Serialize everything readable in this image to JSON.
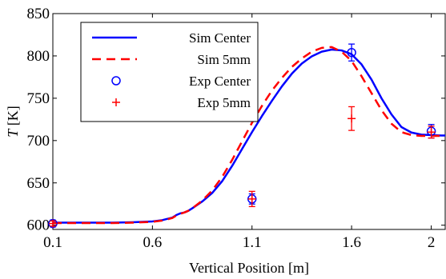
{
  "chart_data": {
    "type": "line",
    "xlabel": "Vertical Position [m]",
    "ylabel_italic": "T",
    "ylabel_unit": " [K]",
    "xlim": [
      0.1,
      2.07
    ],
    "ylim": [
      595,
      850
    ],
    "xticks": [
      0.1,
      0.6,
      1.1,
      1.6,
      2
    ],
    "xtick_labels": [
      "0.1",
      "0.6",
      "1.1",
      "1.6",
      "2"
    ],
    "yticks": [
      600,
      650,
      700,
      750,
      800,
      850
    ],
    "ytick_labels": [
      "600",
      "650",
      "700",
      "750",
      "800",
      "850"
    ],
    "grid": false,
    "legend_position": "top-left",
    "series": [
      {
        "name": "Sim Center",
        "style": "solid-line",
        "color": "#0000FF",
        "x": [
          0.1,
          0.2,
          0.3,
          0.4,
          0.5,
          0.6,
          0.65,
          0.7,
          0.72,
          0.74,
          0.76,
          0.78,
          0.8,
          0.85,
          0.9,
          0.95,
          1.0,
          1.05,
          1.1,
          1.15,
          1.2,
          1.25,
          1.3,
          1.35,
          1.4,
          1.45,
          1.5,
          1.55,
          1.6,
          1.65,
          1.7,
          1.75,
          1.8,
          1.85,
          1.9,
          1.95,
          2.0,
          2.05,
          2.07
        ],
        "y": [
          603,
          603,
          603,
          603,
          603.5,
          604.5,
          606,
          609,
          612,
          614,
          615,
          617,
          620,
          628,
          638,
          652,
          670,
          690,
          710,
          729,
          747,
          764,
          779,
          791,
          799.5,
          805,
          807.5,
          806.5,
          802,
          790,
          772,
          750,
          731,
          716,
          709.5,
          707,
          706.5,
          706,
          706
        ]
      },
      {
        "name": "Sim 5mm",
        "style": "dashed-line",
        "color": "#FF0000",
        "x": [
          0.1,
          0.2,
          0.3,
          0.4,
          0.5,
          0.6,
          0.65,
          0.7,
          0.72,
          0.74,
          0.76,
          0.78,
          0.8,
          0.85,
          0.9,
          0.95,
          1.0,
          1.05,
          1.1,
          1.15,
          1.2,
          1.25,
          1.3,
          1.35,
          1.4,
          1.45,
          1.5,
          1.55,
          1.6,
          1.65,
          1.7,
          1.75,
          1.8,
          1.85,
          1.9,
          1.95,
          2.0,
          2.05,
          2.07
        ],
        "y": [
          602.5,
          602.5,
          602.5,
          602.5,
          603,
          604,
          605.5,
          608.5,
          611.5,
          613.5,
          615,
          617,
          620,
          629,
          641,
          657,
          677,
          699,
          721,
          741,
          759,
          774,
          787,
          797,
          805,
          809.5,
          810.5,
          805,
          794,
          776,
          756,
          736,
          720,
          710,
          706.5,
          705.5,
          705.5,
          705.5,
          705.5
        ]
      },
      {
        "name": "Exp Center",
        "style": "marker-circle",
        "color": "#0000FF",
        "x": [
          0.1,
          1.1,
          1.6,
          2.0
        ],
        "y": [
          602,
          631,
          804,
          711
        ],
        "error": [
          4,
          6,
          10,
          8
        ]
      },
      {
        "name": "Exp 5mm",
        "style": "marker-plus",
        "color": "#FF0000",
        "x": [
          0.1,
          1.1,
          1.6,
          2.0
        ],
        "y": [
          602,
          631,
          726,
          710
        ],
        "error": [
          3,
          9,
          14,
          7
        ]
      }
    ]
  }
}
